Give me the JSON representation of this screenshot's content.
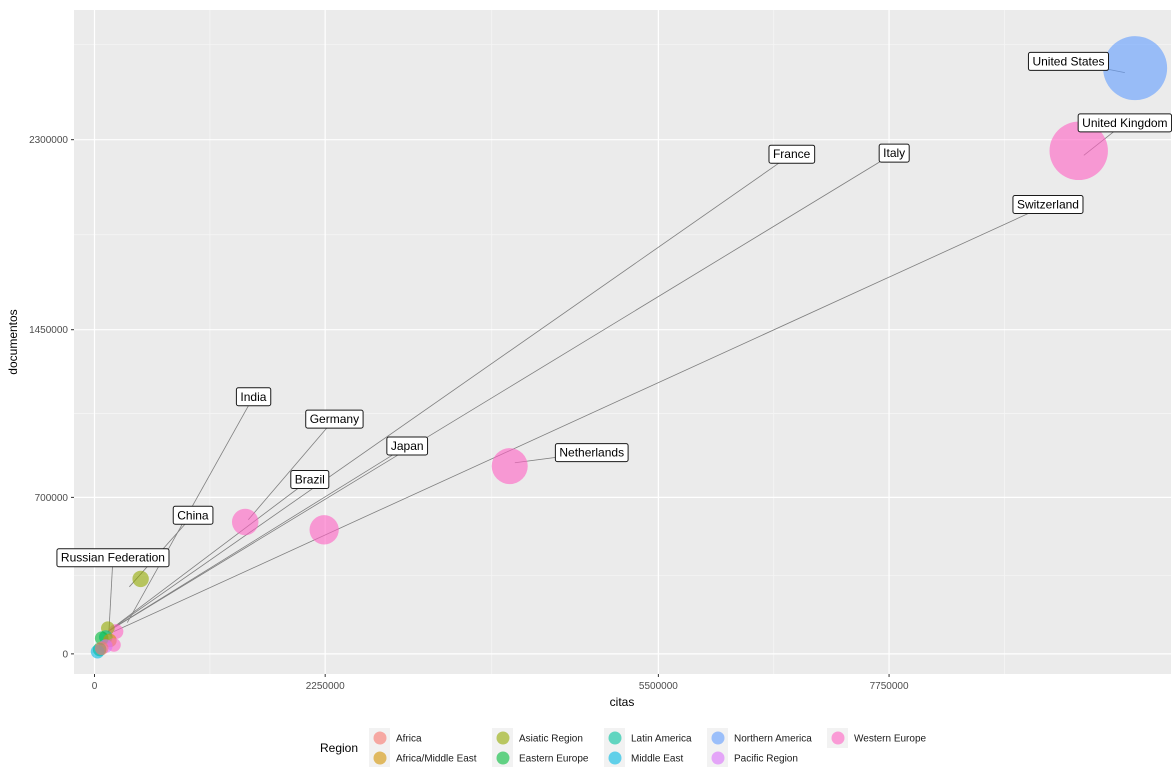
{
  "chart_data": {
    "type": "scatter",
    "title": "",
    "xlabel": "citas",
    "ylabel": "documentos",
    "xlim": [
      -200000,
      10500000
    ],
    "ylim": [
      -90000,
      2880000
    ],
    "x_ticks": [
      0,
      2250000,
      5500000,
      7750000
    ],
    "y_ticks": [
      0,
      700000,
      1450000,
      2300000
    ],
    "x_tick_labels": [
      "0",
      "2250000",
      "5500000",
      "7750000"
    ],
    "y_tick_labels": [
      "0",
      "700000",
      "1450000",
      "2300000"
    ],
    "grid": true,
    "legend": {
      "title": "Region",
      "placement": "bottom",
      "entries": [
        {
          "name": "Africa",
          "color": "#F8766D"
        },
        {
          "name": "Africa/Middle East",
          "color": "#D39200"
        },
        {
          "name": "Asiatic Region",
          "color": "#93AA00"
        },
        {
          "name": "Eastern Europe",
          "color": "#00BA38"
        },
        {
          "name": "Latin America",
          "color": "#00C19F"
        },
        {
          "name": "Middle East",
          "color": "#00B9E3"
        },
        {
          "name": "Northern America",
          "color": "#619CFF"
        },
        {
          "name": "Pacific Region",
          "color": "#DB72FB"
        },
        {
          "name": "Western Europe",
          "color": "#FF61C3"
        }
      ]
    },
    "points": [
      {
        "label": "United States",
        "region": "Northern America",
        "x": 10150000,
        "y": 2620000,
        "size": 1.0
      },
      {
        "label": "United Kingdom",
        "region": "Western Europe",
        "x": 9600000,
        "y": 2250000,
        "size": 0.9
      },
      {
        "label": "Netherlands",
        "region": "Western Europe",
        "x": 4050000,
        "y": 840000,
        "size": 0.5
      },
      {
        "label": "Switzerland",
        "region": "Western Europe",
        "x": 2240000,
        "y": 555000,
        "size": 0.38
      },
      {
        "label": "",
        "region": "Western Europe",
        "x": 1470000,
        "y": 590000,
        "size": 0.33
      },
      {
        "label": "",
        "region": "Asiatic Region",
        "x": 450000,
        "y": 335000,
        "size": 0.15
      },
      {
        "label": "",
        "region": "Western Europe",
        "x": 210000,
        "y": 100000,
        "size": 0.12
      },
      {
        "label": "",
        "region": "Asiatic Region",
        "x": 130000,
        "y": 115000,
        "size": 0.1
      },
      {
        "label": "",
        "region": "Latin America",
        "x": 110000,
        "y": 75000,
        "size": 0.1
      },
      {
        "label": "",
        "region": "Eastern Europe",
        "x": 70000,
        "y": 70000,
        "size": 0.1
      },
      {
        "label": "",
        "region": "Africa/Middle East",
        "x": 150000,
        "y": 60000,
        "size": 0.1
      },
      {
        "label": "",
        "region": "Western Europe",
        "x": 190000,
        "y": 40000,
        "size": 0.1
      },
      {
        "label": "",
        "region": "Pacific Region",
        "x": 110000,
        "y": 35000,
        "size": 0.1
      },
      {
        "label": "",
        "region": "Eastern Europe",
        "x": 50000,
        "y": 20000,
        "size": 0.1
      },
      {
        "label": "",
        "region": "Middle East",
        "x": 30000,
        "y": 10000,
        "size": 0.1
      },
      {
        "label": "",
        "region": "Africa",
        "x": 70000,
        "y": 25000,
        "size": 0.1
      }
    ],
    "annotations": [
      {
        "label": "United States",
        "ax": 9500000,
        "ay": 2650000,
        "tx": 10050000,
        "ty": 2600000
      },
      {
        "label": "United Kingdom",
        "ax": 10050000,
        "ay": 2375000,
        "tx": 9650000,
        "ty": 2230000
      },
      {
        "label": "France",
        "ax": 6800000,
        "ay": 2235000,
        "tx": 130000,
        "ty": 100000
      },
      {
        "label": "Italy",
        "ax": 7800000,
        "ay": 2240000,
        "tx": 130000,
        "ty": 100000
      },
      {
        "label": "Switzerland",
        "ax": 9300000,
        "ay": 2010000,
        "tx": 190000,
        "ty": 100000
      },
      {
        "label": "Netherlands",
        "ax": 4850000,
        "ay": 900000,
        "tx": 4100000,
        "ty": 855000
      },
      {
        "label": "India",
        "ax": 1550000,
        "ay": 1150000,
        "tx": 320000,
        "ty": 140000
      },
      {
        "label": "Germany",
        "ax": 2340000,
        "ay": 1050000,
        "tx": 1500000,
        "ty": 600000
      },
      {
        "label": "Japan",
        "ax": 3050000,
        "ay": 930000,
        "tx": 130000,
        "ty": 100000
      },
      {
        "label": "Brazil",
        "ax": 2100000,
        "ay": 780000,
        "tx": 130000,
        "ty": 100000
      },
      {
        "label": "China",
        "ax": 960000,
        "ay": 620000,
        "tx": 340000,
        "ty": 300000
      },
      {
        "label": "Russian Federation",
        "ax": 180000,
        "ay": 430000,
        "tx": 140000,
        "ty": 95000
      }
    ]
  }
}
